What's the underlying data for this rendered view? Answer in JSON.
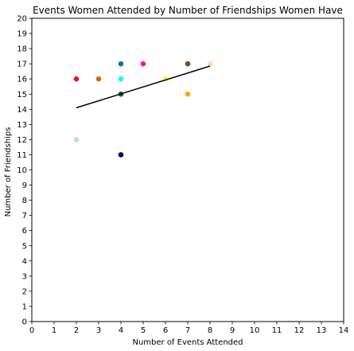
{
  "chart_data": {
    "type": "scatter",
    "title": "Events Women Attended by Number of Friendships Women Have",
    "xlabel": "Number of Events Attended",
    "ylabel": "Number of Friendships",
    "xlim": [
      0,
      14
    ],
    "ylim": [
      0,
      20
    ],
    "xticks": [
      "0",
      "1",
      "2",
      "3",
      "4",
      "5",
      "6",
      "7",
      "8",
      "9",
      "10",
      "11",
      "12",
      "13",
      "14"
    ],
    "yticks": [
      "0",
      "1",
      "2",
      "3",
      "4",
      "5",
      "6",
      "7",
      "8",
      "9",
      "10",
      "11",
      "12",
      "13",
      "14",
      "15",
      "16",
      "17",
      "18",
      "19",
      "20"
    ],
    "grid": false,
    "legend": "none",
    "points": [
      {
        "x": 2,
        "y": 16,
        "color": "#dc143c"
      },
      {
        "x": 2,
        "y": 12,
        "color": "#b0e0e6"
      },
      {
        "x": 3,
        "y": 16,
        "color": "#d2691e"
      },
      {
        "x": 4,
        "y": 17,
        "color": "#008080"
      },
      {
        "x": 4,
        "y": 16,
        "color": "#00ffff"
      },
      {
        "x": 4,
        "y": 15,
        "color": "#2f4f4f"
      },
      {
        "x": 4,
        "y": 11,
        "color": "#000080"
      },
      {
        "x": 5,
        "y": 17,
        "color": "#ff1493"
      },
      {
        "x": 6,
        "y": 16,
        "color": "#ffff33"
      },
      {
        "x": 7,
        "y": 17,
        "color": "#8b4513"
      },
      {
        "x": 7,
        "y": 15,
        "color": "#ffa500"
      },
      {
        "x": 8,
        "y": 17,
        "color": "#ffdab9"
      }
    ],
    "trendline": {
      "x": [
        2,
        8
      ],
      "y": [
        14.1,
        16.85
      ],
      "color": "#000000"
    }
  }
}
